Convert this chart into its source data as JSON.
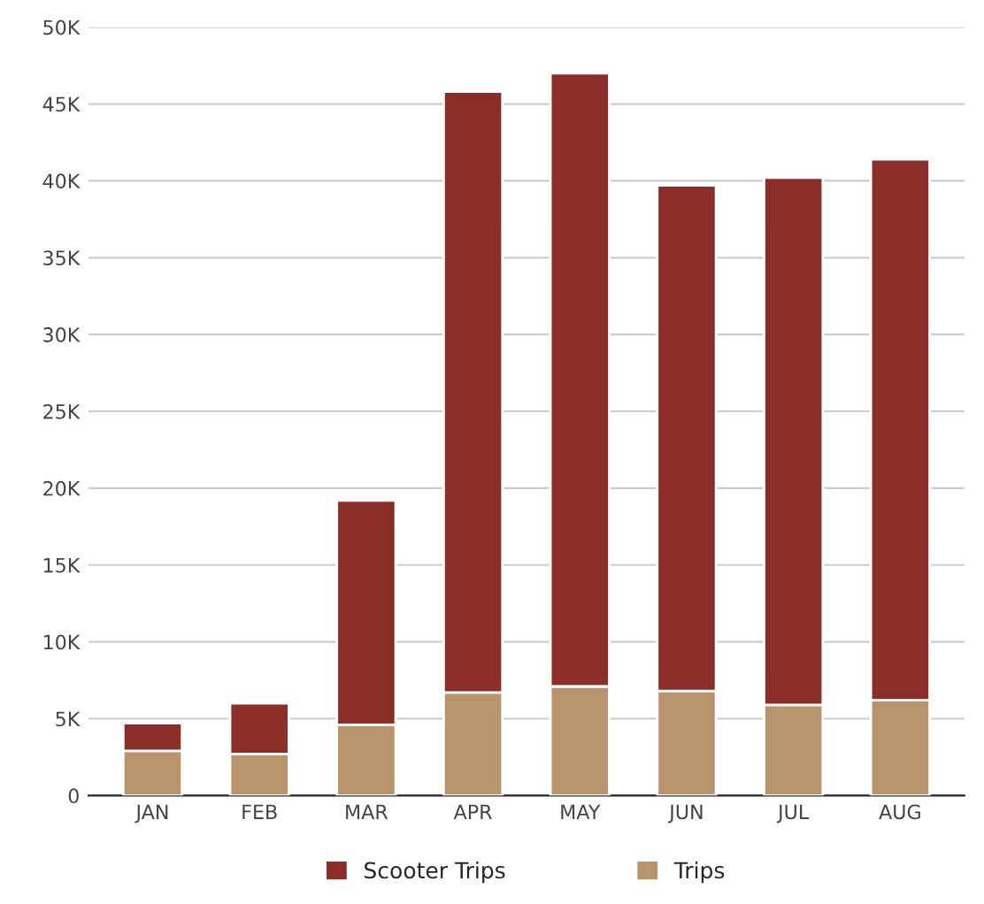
{
  "chart_data": {
    "type": "bar",
    "stacked": true,
    "categories": [
      "JAN",
      "FEB",
      "MAR",
      "APR",
      "MAY",
      "JUN",
      "JUL",
      "AUG"
    ],
    "series": [
      {
        "name": "Trips",
        "color": "#b8936b",
        "values": [
          2.9,
          2.7,
          4.6,
          6.7,
          7.1,
          6.8,
          5.9,
          6.2
        ]
      },
      {
        "name": "Scooter Trips",
        "color": "#8b2e2a",
        "values": [
          1.8,
          3.3,
          14.6,
          39.1,
          39.9,
          32.9,
          34.3,
          35.2
        ]
      }
    ],
    "ylim": [
      0,
      50
    ],
    "yticks": [
      {
        "value": 0,
        "label": "0"
      },
      {
        "value": 5,
        "label": "5K"
      },
      {
        "value": 10,
        "label": "10K"
      },
      {
        "value": 15,
        "label": "15K"
      },
      {
        "value": 20,
        "label": "20K"
      },
      {
        "value": 25,
        "label": "25K"
      },
      {
        "value": 30,
        "label": "30K"
      },
      {
        "value": 35,
        "label": "35K"
      },
      {
        "value": 40,
        "label": "40K"
      },
      {
        "value": 45,
        "label": "45K"
      },
      {
        "value": 50,
        "label": "50K"
      }
    ],
    "grid": "y",
    "legend": "bottom"
  }
}
